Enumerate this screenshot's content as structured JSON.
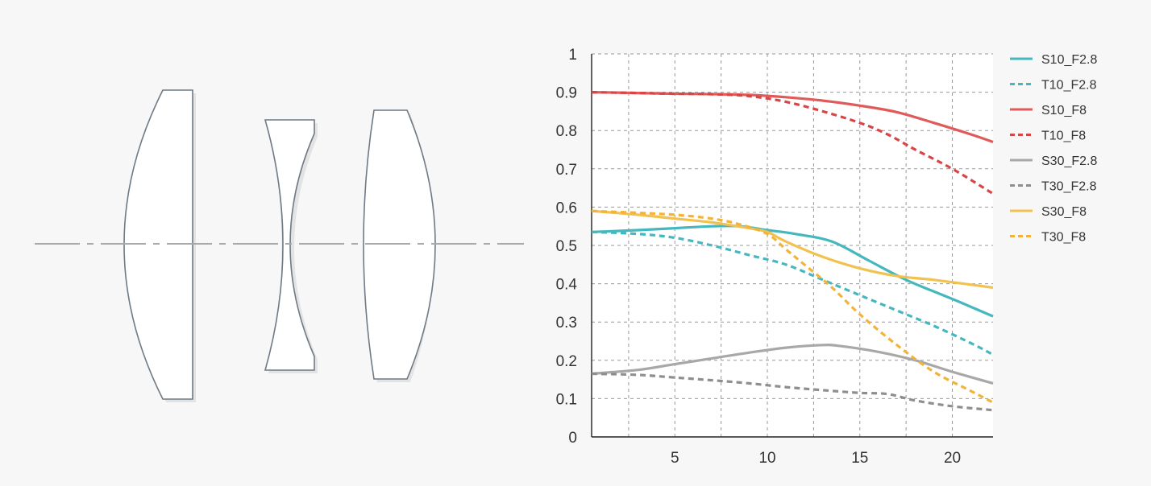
{
  "lens_diagram": {
    "elements": [
      "biconvex-lens",
      "biconcave-lens",
      "biconvex-lens"
    ],
    "optical_axis_style": "dash-dot"
  },
  "chart_data": {
    "type": "line",
    "title": "",
    "xlabel": "",
    "ylabel": "",
    "xlim": [
      0.5,
      22.2
    ],
    "ylim": [
      0,
      1
    ],
    "xticks": [
      "5",
      "10",
      "15",
      "20"
    ],
    "xtick_values": [
      5,
      10,
      15,
      20
    ],
    "yticks": [
      "0",
      "0.1",
      "0.2",
      "0.3",
      "0.4",
      "0.5",
      "0.6",
      "0.7",
      "0.8",
      "0.9",
      "1"
    ],
    "ytick_values": [
      0,
      0.1,
      0.2,
      0.3,
      0.4,
      0.5,
      0.6,
      0.7,
      0.8,
      0.9,
      1
    ],
    "grid": true,
    "legend_position": "right",
    "series": [
      {
        "name": "S10_F2.8",
        "color": "#45b8bf",
        "dash": false,
        "x": [
          0.5,
          3,
          5,
          7,
          8.5,
          10,
          11.5,
          13.5,
          15.5,
          17.5,
          19.5,
          20.5,
          22.2
        ],
        "y": [
          0.535,
          0.54,
          0.545,
          0.55,
          0.55,
          0.54,
          0.53,
          0.51,
          0.46,
          0.41,
          0.37,
          0.35,
          0.315
        ]
      },
      {
        "name": "T10_F2.8",
        "color": "#45b8bf",
        "dash": true,
        "x": [
          0.5,
          3,
          5,
          7,
          9,
          11,
          13,
          15,
          17,
          19,
          21,
          22.2
        ],
        "y": [
          0.535,
          0.53,
          0.52,
          0.5,
          0.475,
          0.45,
          0.41,
          0.37,
          0.33,
          0.29,
          0.245,
          0.215
        ]
      },
      {
        "name": "S10_F8",
        "color": "#e05a5a",
        "dash": false,
        "x": [
          0.5,
          3,
          5,
          7,
          9,
          11,
          13,
          15,
          17,
          19,
          21,
          22.2
        ],
        "y": [
          0.9,
          0.898,
          0.896,
          0.895,
          0.893,
          0.887,
          0.878,
          0.865,
          0.848,
          0.82,
          0.79,
          0.77
        ]
      },
      {
        "name": "T10_F8",
        "color": "#d94444",
        "dash": true,
        "x": [
          0.5,
          3,
          5,
          7,
          9,
          11,
          13,
          15,
          16.5,
          18,
          20,
          22.2
        ],
        "y": [
          0.9,
          0.898,
          0.896,
          0.895,
          0.89,
          0.875,
          0.85,
          0.82,
          0.79,
          0.75,
          0.7,
          0.635
        ]
      },
      {
        "name": "S30_F2.8",
        "color": "#a8a8a8",
        "dash": false,
        "x": [
          0.5,
          3,
          5,
          7,
          9,
          11,
          13,
          14,
          16,
          18,
          20,
          22.2
        ],
        "y": [
          0.165,
          0.175,
          0.19,
          0.205,
          0.22,
          0.233,
          0.24,
          0.237,
          0.222,
          0.2,
          0.17,
          0.14
        ]
      },
      {
        "name": "T30_F2.8",
        "color": "#8e8e8e",
        "dash": true,
        "x": [
          0.5,
          3,
          5,
          7,
          9,
          11,
          13,
          15,
          16.5,
          18,
          20,
          22.2
        ],
        "y": [
          0.165,
          0.162,
          0.155,
          0.148,
          0.14,
          0.13,
          0.122,
          0.115,
          0.112,
          0.095,
          0.08,
          0.07
        ]
      },
      {
        "name": "S30_F8",
        "color": "#f2c14e",
        "dash": false,
        "x": [
          0.5,
          3,
          5,
          7,
          9,
          10,
          11,
          13,
          15,
          17,
          19,
          22.2
        ],
        "y": [
          0.59,
          0.58,
          0.57,
          0.56,
          0.545,
          0.535,
          0.51,
          0.47,
          0.44,
          0.42,
          0.41,
          0.39
        ]
      },
      {
        "name": "T30_F8",
        "color": "#f2b33a",
        "dash": true,
        "x": [
          0.5,
          3,
          5,
          7,
          8.5,
          10,
          11,
          12,
          13.5,
          15,
          17,
          19,
          21,
          22.2
        ],
        "y": [
          0.59,
          0.585,
          0.58,
          0.57,
          0.555,
          0.53,
          0.49,
          0.45,
          0.39,
          0.32,
          0.24,
          0.17,
          0.12,
          0.09
        ]
      }
    ]
  }
}
